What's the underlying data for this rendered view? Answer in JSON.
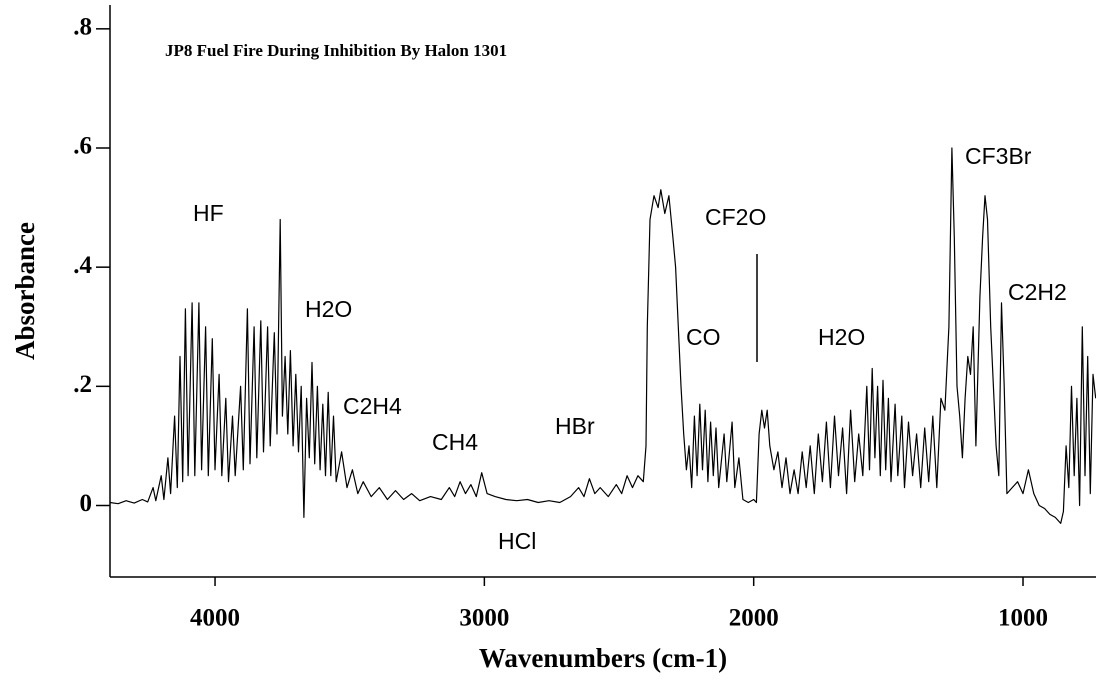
{
  "chart_data": {
    "type": "line",
    "title": "JP8 Fuel Fire During Inhibition By Halon 1301",
    "xlabel": "Wavenumbers (cm-1)",
    "ylabel": "Absorbance",
    "color": "#000000",
    "xlim": [
      4390,
      729
    ],
    "xticks": [
      4000,
      3000,
      2000,
      1000
    ],
    "ylim": [
      -0.12,
      0.84
    ],
    "yticks": [
      {
        "value": 0.8,
        "label": ".8"
      },
      {
        "value": 0.6,
        "label": ".6"
      },
      {
        "value": 0.4,
        "label": ".4"
      },
      {
        "value": 0.2,
        "label": ".2"
      },
      0
    ],
    "annotations": [
      "HF",
      "H2O",
      "C2H4",
      "CH4",
      "HBr",
      "HCl",
      "CO",
      "CF2O",
      "H2O",
      "CF3Br",
      "C2H2"
    ],
    "x": [
      4390,
      4360,
      4330,
      4300,
      4270,
      4250,
      4230,
      4220,
      4200,
      4190,
      4175,
      4165,
      4150,
      4140,
      4130,
      4120,
      4110,
      4100,
      4085,
      4075,
      4060,
      4050,
      4035,
      4025,
      4010,
      4000,
      3985,
      3975,
      3960,
      3950,
      3935,
      3925,
      3905,
      3895,
      3880,
      3870,
      3855,
      3845,
      3830,
      3820,
      3805,
      3795,
      3780,
      3770,
      3758,
      3750,
      3740,
      3730,
      3720,
      3710,
      3700,
      3690,
      3680,
      3670,
      3660,
      3650,
      3640,
      3630,
      3620,
      3610,
      3600,
      3590,
      3580,
      3570,
      3560,
      3550,
      3530,
      3510,
      3490,
      3470,
      3450,
      3420,
      3390,
      3360,
      3330,
      3300,
      3270,
      3240,
      3200,
      3160,
      3130,
      3110,
      3090,
      3070,
      3050,
      3030,
      3010,
      2990,
      2960,
      2920,
      2880,
      2840,
      2800,
      2760,
      2720,
      2680,
      2650,
      2630,
      2610,
      2590,
      2570,
      2540,
      2510,
      2490,
      2470,
      2450,
      2430,
      2410,
      2400,
      2395,
      2385,
      2370,
      2355,
      2345,
      2330,
      2315,
      2300,
      2290,
      2280,
      2270,
      2260,
      2250,
      2240,
      2230,
      2220,
      2210,
      2200,
      2190,
      2180,
      2170,
      2160,
      2150,
      2140,
      2130,
      2110,
      2100,
      2080,
      2070,
      2055,
      2040,
      2020,
      2000,
      1990,
      1980,
      1970,
      1960,
      1950,
      1940,
      1925,
      1910,
      1895,
      1880,
      1865,
      1850,
      1835,
      1820,
      1805,
      1790,
      1775,
      1760,
      1745,
      1730,
      1715,
      1700,
      1685,
      1670,
      1655,
      1640,
      1625,
      1610,
      1595,
      1580,
      1570,
      1560,
      1550,
      1540,
      1530,
      1520,
      1510,
      1500,
      1490,
      1475,
      1465,
      1450,
      1440,
      1425,
      1410,
      1395,
      1380,
      1365,
      1350,
      1335,
      1320,
      1305,
      1290,
      1275,
      1264,
      1255,
      1245,
      1235,
      1225,
      1215,
      1205,
      1195,
      1185,
      1175,
      1160,
      1150,
      1141,
      1132,
      1120,
      1110,
      1100,
      1090,
      1080,
      1070,
      1060,
      1040,
      1020,
      1000,
      980,
      960,
      940,
      920,
      900,
      880,
      860,
      850,
      840,
      830,
      820,
      810,
      800,
      790,
      780,
      770,
      760,
      750,
      740,
      730
    ],
    "values": [
      0.005,
      0.003,
      0.008,
      0.004,
      0.01,
      0.006,
      0.03,
      0.008,
      0.05,
      0.01,
      0.08,
      0.02,
      0.15,
      0.03,
      0.25,
      0.04,
      0.33,
      0.05,
      0.34,
      0.05,
      0.34,
      0.06,
      0.3,
      0.05,
      0.28,
      0.06,
      0.22,
      0.05,
      0.18,
      0.04,
      0.15,
      0.05,
      0.2,
      0.06,
      0.33,
      0.07,
      0.3,
      0.08,
      0.31,
      0.09,
      0.3,
      0.1,
      0.29,
      0.12,
      0.48,
      0.15,
      0.25,
      0.12,
      0.26,
      0.1,
      0.22,
      0.09,
      0.2,
      -0.02,
      0.18,
      0.08,
      0.24,
      0.07,
      0.2,
      0.06,
      0.17,
      0.05,
      0.19,
      0.05,
      0.15,
      0.04,
      0.09,
      0.03,
      0.06,
      0.02,
      0.04,
      0.015,
      0.03,
      0.01,
      0.025,
      0.01,
      0.02,
      0.008,
      0.015,
      0.01,
      0.03,
      0.015,
      0.04,
      0.02,
      0.035,
      0.015,
      0.055,
      0.02,
      0.015,
      0.01,
      0.008,
      0.01,
      0.005,
      0.008,
      0.005,
      0.015,
      0.03,
      0.015,
      0.045,
      0.02,
      0.03,
      0.015,
      0.035,
      0.02,
      0.05,
      0.03,
      0.05,
      0.04,
      0.1,
      0.3,
      0.48,
      0.52,
      0.5,
      0.53,
      0.49,
      0.52,
      0.45,
      0.4,
      0.3,
      0.2,
      0.12,
      0.06,
      0.1,
      0.03,
      0.15,
      0.05,
      0.17,
      0.06,
      0.16,
      0.04,
      0.14,
      0.05,
      0.13,
      0.03,
      0.12,
      0.04,
      0.14,
      0.03,
      0.08,
      0.01,
      0.005,
      0.01,
      0.005,
      0.12,
      0.16,
      0.13,
      0.16,
      0.1,
      0.06,
      0.09,
      0.03,
      0.08,
      0.02,
      0.06,
      0.02,
      0.09,
      0.03,
      0.1,
      0.02,
      0.12,
      0.04,
      0.14,
      0.03,
      0.15,
      0.05,
      0.13,
      0.02,
      0.16,
      0.04,
      0.12,
      0.05,
      0.2,
      0.06,
      0.23,
      0.08,
      0.2,
      0.05,
      0.21,
      0.06,
      0.18,
      0.04,
      0.17,
      0.05,
      0.15,
      0.03,
      0.14,
      0.05,
      0.12,
      0.03,
      0.13,
      0.04,
      0.15,
      0.03,
      0.18,
      0.16,
      0.3,
      0.6,
      0.45,
      0.2,
      0.15,
      0.08,
      0.18,
      0.25,
      0.22,
      0.3,
      0.1,
      0.35,
      0.45,
      0.52,
      0.48,
      0.3,
      0.2,
      0.1,
      0.05,
      0.34,
      0.2,
      0.02,
      0.03,
      0.04,
      0.02,
      0.06,
      0.02,
      0.0,
      -0.005,
      -0.015,
      -0.02,
      -0.03,
      -0.01,
      0.1,
      0.03,
      0.2,
      0.05,
      0.18,
      0.0,
      0.3,
      0.05,
      0.25,
      0.02,
      0.22,
      0.18
    ]
  }
}
